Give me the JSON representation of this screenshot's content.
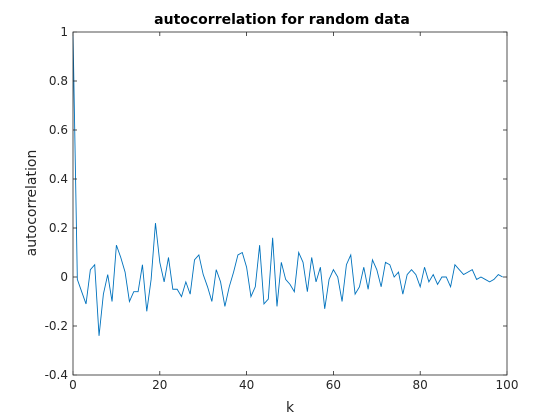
{
  "chart_data": {
    "type": "line",
    "title": "autocorrelation for random data",
    "xlabel": "k",
    "ylabel": "autocorrelation",
    "xlim": [
      0,
      100
    ],
    "ylim": [
      -0.4,
      1
    ],
    "xticks": [
      "0",
      "20",
      "40",
      "60",
      "80",
      "100"
    ],
    "yticks": [
      "-0.4",
      "-0.2",
      "0",
      "0.2",
      "0.4",
      "0.6",
      "0.8",
      "1"
    ],
    "grid": false,
    "line_color": "#0072BD",
    "series": [
      {
        "x": [
          0,
          1,
          2,
          3,
          4,
          5,
          6,
          7,
          8,
          9,
          10,
          11,
          12,
          13,
          14,
          15,
          16,
          17,
          18,
          19,
          20,
          21,
          22,
          23,
          24,
          25,
          26,
          27,
          28,
          29,
          30,
          31,
          32,
          33,
          34,
          35,
          36,
          37,
          38,
          39,
          40,
          41,
          42,
          43,
          44,
          45,
          46,
          47,
          48,
          49,
          50,
          51,
          52,
          53,
          54,
          55,
          56,
          57,
          58,
          59,
          60,
          61,
          62,
          63,
          64,
          65,
          66,
          67,
          68,
          69,
          70,
          71,
          72,
          73,
          74,
          75,
          76,
          77,
          78,
          79,
          80,
          81,
          82,
          83,
          84,
          85,
          86,
          87,
          88,
          89,
          90,
          91,
          92,
          93,
          94,
          95,
          96,
          97,
          98,
          99
        ],
        "values": [
          1.0,
          -0.01,
          -0.06,
          -0.11,
          0.03,
          0.05,
          -0.24,
          -0.07,
          0.01,
          -0.1,
          0.13,
          0.08,
          0.02,
          -0.1,
          -0.06,
          -0.06,
          0.05,
          -0.14,
          -0.01,
          0.22,
          0.06,
          -0.02,
          0.08,
          -0.05,
          -0.05,
          -0.08,
          -0.02,
          -0.07,
          0.07,
          0.09,
          0.01,
          -0.04,
          -0.1,
          0.03,
          -0.02,
          -0.12,
          -0.04,
          0.02,
          0.09,
          0.1,
          0.04,
          -0.08,
          -0.04,
          0.13,
          -0.11,
          -0.09,
          0.16,
          -0.12,
          0.06,
          -0.01,
          -0.03,
          -0.06,
          0.1,
          0.06,
          -0.06,
          0.08,
          -0.02,
          0.04,
          -0.13,
          -0.01,
          0.03,
          0.0,
          -0.1,
          0.05,
          0.09,
          -0.07,
          -0.04,
          0.04,
          -0.05,
          0.07,
          0.03,
          -0.04,
          0.06,
          0.05,
          0.0,
          0.02,
          -0.07,
          0.01,
          0.03,
          0.01,
          -0.04,
          0.04,
          -0.02,
          0.01,
          -0.03,
          0.0,
          0.0,
          -0.04,
          0.05,
          0.03,
          0.01,
          0.02,
          0.03,
          -0.01,
          0.0,
          -0.01,
          -0.02,
          -0.01,
          0.01,
          0.0
        ]
      }
    ]
  }
}
